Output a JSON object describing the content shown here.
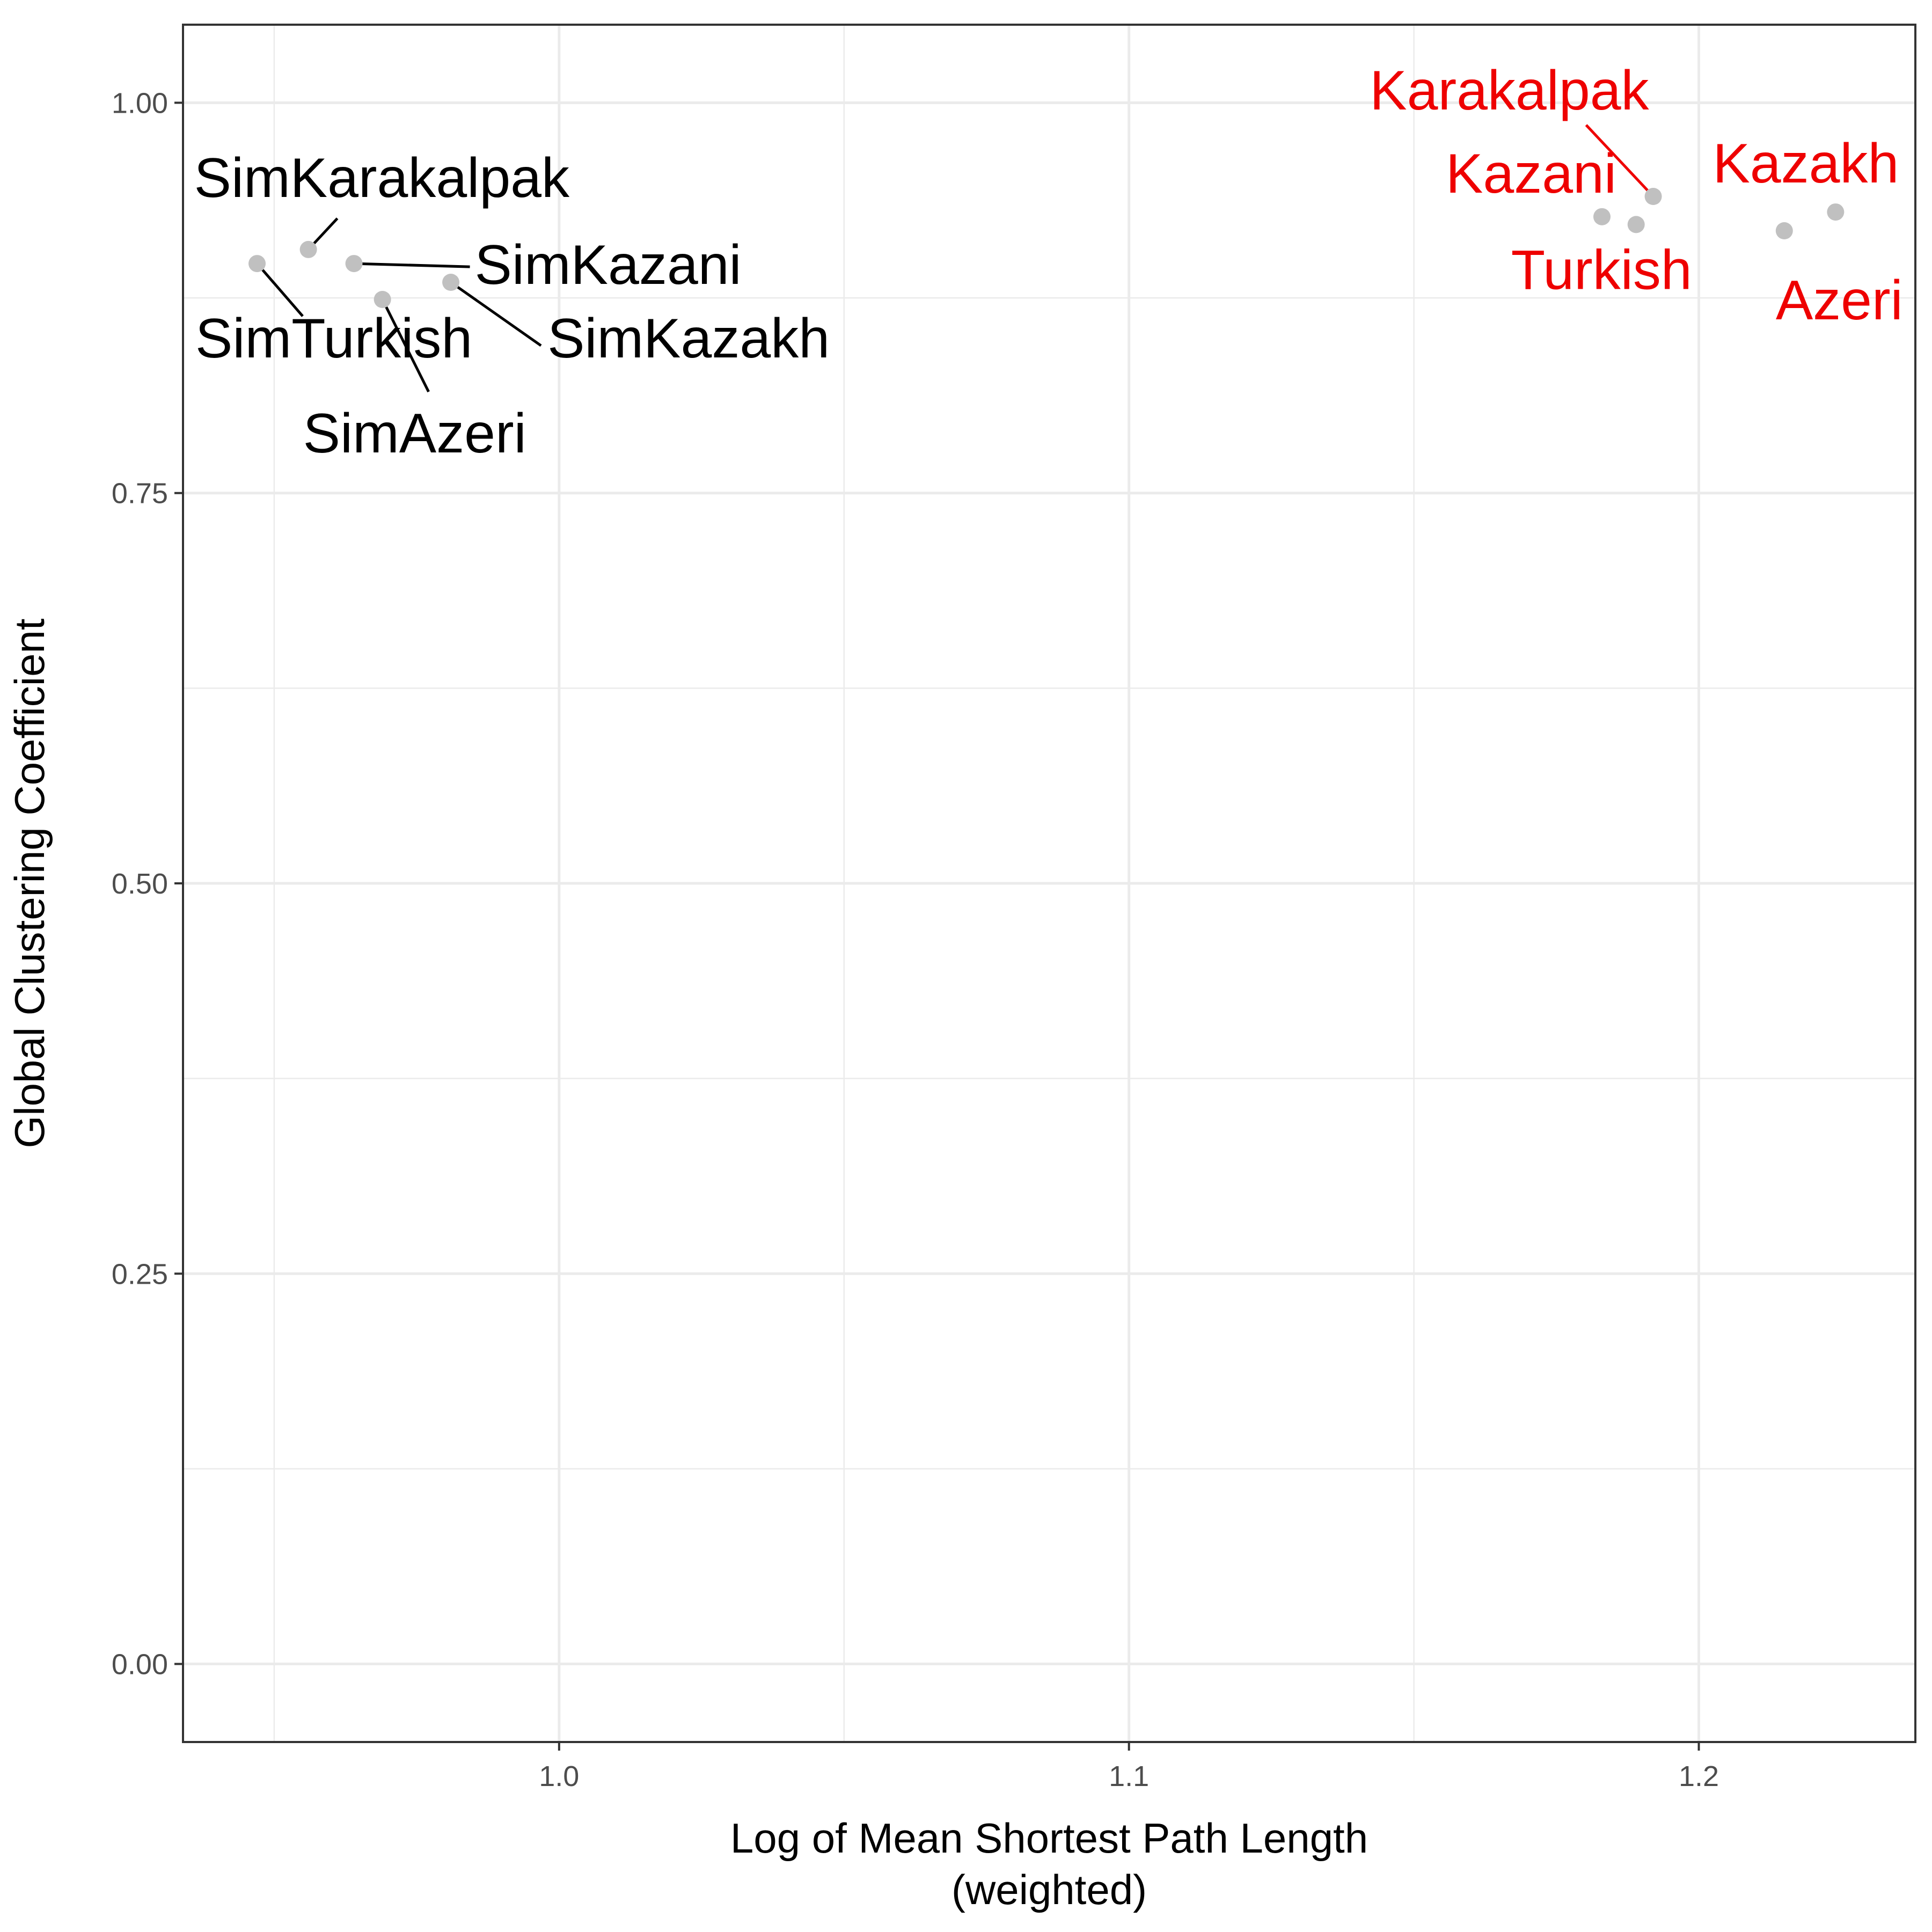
{
  "chart_data": {
    "type": "scatter",
    "xlabel": [
      "Log of Mean Shortest Path Length",
      "(weighted)"
    ],
    "ylabel": "Global Clustering Coefficient",
    "xlim": [
      0.934,
      1.238
    ],
    "ylim": [
      -0.05,
      1.05
    ],
    "x_ticks": [
      1.0,
      1.1,
      1.2
    ],
    "x_tick_labels": [
      "1.0",
      "1.1",
      "1.2"
    ],
    "y_ticks": [
      0.0,
      0.25,
      0.5,
      0.75,
      1.0
    ],
    "y_tick_labels": [
      "0.00",
      "0.25",
      "0.50",
      "0.75",
      "1.00"
    ],
    "grid": true,
    "point_color": "#c0c0c0",
    "label_colors": {
      "simulated": "#000000",
      "observed": "#ee0000"
    },
    "points": [
      {
        "label": "SimTurkish",
        "x": 0.947,
        "y": 0.897,
        "group": "simulated"
      },
      {
        "label": "SimKarakalpak",
        "x": 0.956,
        "y": 0.906,
        "group": "simulated"
      },
      {
        "label": "SimKazani",
        "x": 0.964,
        "y": 0.897,
        "group": "simulated"
      },
      {
        "label": "SimAzeri",
        "x": 0.969,
        "y": 0.874,
        "group": "simulated"
      },
      {
        "label": "SimKazakh",
        "x": 0.981,
        "y": 0.885,
        "group": "simulated"
      },
      {
        "label": "Kazani",
        "x": 1.183,
        "y": 0.927,
        "group": "observed"
      },
      {
        "label": "Turkish",
        "x": 1.189,
        "y": 0.922,
        "group": "observed"
      },
      {
        "label": "Karakalpak",
        "x": 1.192,
        "y": 0.94,
        "group": "observed"
      },
      {
        "label": "Azeri",
        "x": 1.215,
        "y": 0.918,
        "group": "observed"
      },
      {
        "label": "Kazakh",
        "x": 1.224,
        "y": 0.93,
        "group": "observed"
      }
    ]
  }
}
